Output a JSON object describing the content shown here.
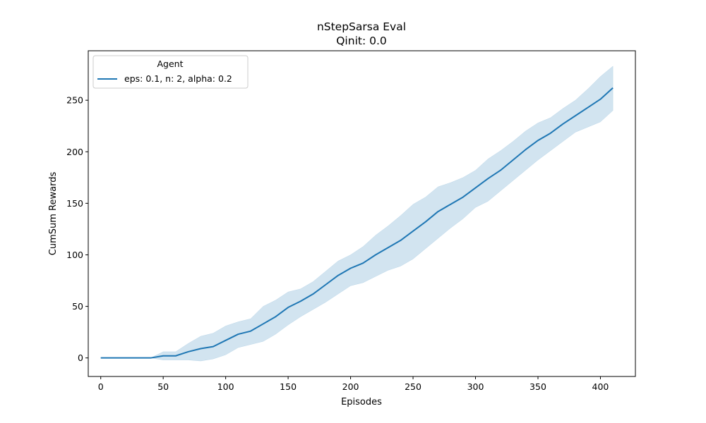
{
  "chart_data": {
    "type": "line",
    "title": "nStepSarsa Eval",
    "subtitle": "Qinit: 0.0",
    "xlabel": "Episodes",
    "ylabel": "CumSum Rewards",
    "xlim": [
      -10,
      428
    ],
    "ylim": [
      -18,
      298
    ],
    "xticks": [
      0,
      50,
      100,
      150,
      200,
      250,
      300,
      350,
      400
    ],
    "yticks": [
      0,
      50,
      100,
      150,
      200,
      250
    ],
    "grid": false,
    "legend": {
      "title": "Agent",
      "placement": "top-left"
    },
    "series": [
      {
        "name": "eps: 0.1, n: 2, alpha: 0.2",
        "color": "#1f77b4",
        "x": [
          0,
          10,
          20,
          30,
          40,
          50,
          60,
          70,
          80,
          90,
          100,
          110,
          120,
          130,
          140,
          150,
          160,
          170,
          180,
          190,
          200,
          210,
          220,
          230,
          240,
          250,
          260,
          270,
          280,
          290,
          300,
          310,
          320,
          330,
          340,
          350,
          360,
          370,
          380,
          390,
          400,
          410
        ],
        "y": [
          0,
          0,
          0,
          0,
          0,
          2,
          2,
          6,
          9,
          11,
          17,
          23,
          26,
          33,
          40,
          49,
          55,
          62,
          71,
          80,
          87,
          92,
          100,
          107,
          114,
          123,
          132,
          142,
          149,
          156,
          165,
          174,
          182,
          192,
          202,
          211,
          218,
          227,
          235,
          243,
          251,
          262
        ],
        "lower": [
          0,
          0,
          0,
          0,
          0,
          -2,
          -2,
          -2,
          -3,
          -1,
          3,
          10,
          13,
          16,
          23,
          32,
          40,
          47,
          54,
          62,
          70,
          73,
          79,
          85,
          89,
          96,
          106,
          116,
          126,
          135,
          146,
          152,
          162,
          172,
          182,
          192,
          201,
          210,
          219,
          224,
          229,
          240
        ],
        "upper": [
          0,
          0,
          0,
          0,
          0,
          6,
          6,
          14,
          21,
          24,
          31,
          35,
          38,
          50,
          56,
          64,
          67,
          74,
          84,
          94,
          100,
          108,
          119,
          128,
          138,
          149,
          156,
          166,
          170,
          175,
          182,
          193,
          201,
          210,
          220,
          228,
          233,
          242,
          250,
          261,
          273,
          283
        ]
      }
    ]
  }
}
